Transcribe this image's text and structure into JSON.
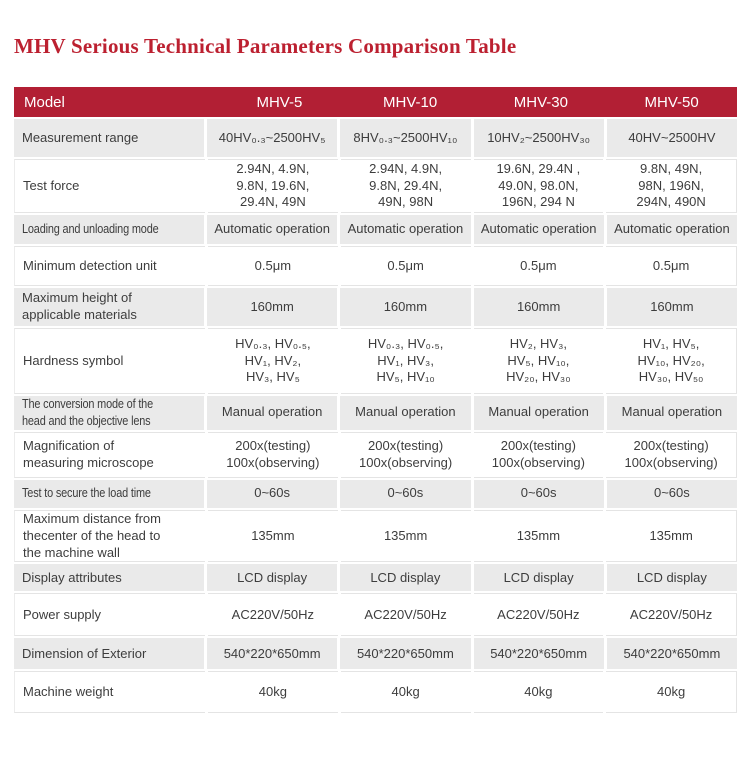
{
  "page": {
    "title": "MHV Serious Technical Parameters Comparison Table"
  },
  "colors": {
    "title_text": "#bc2030",
    "header_bg": "#b21f34",
    "header_text": "#ffffff",
    "row_gray": "#eaeaea",
    "row_white": "#ffffff",
    "body_text": "#3d3d3d"
  },
  "table": {
    "header": {
      "label": "Model",
      "columns": [
        "MHV-5",
        "MHV-10",
        "MHV-30",
        "MHV-50"
      ]
    },
    "rows": [
      {
        "label": "Measurement range",
        "values": [
          "40HV₀.₃~2500HV₅",
          "8HV₀.₃~2500HV₁₀",
          "10HV₂~2500HV₃₀",
          "40HV~2500HV"
        ]
      },
      {
        "label": "Test force",
        "values": [
          [
            "2.94N, 4.9N,",
            "9.8N, 19.6N,",
            "29.4N, 49N"
          ],
          [
            "2.94N, 4.9N,",
            "9.8N, 29.4N,",
            "49N, 98N"
          ],
          [
            "19.6N, 29.4N ,",
            "49.0N, 98.0N,",
            "196N, 294 N"
          ],
          [
            "9.8N, 49N,",
            "98N, 196N,",
            "294N, 490N"
          ]
        ]
      },
      {
        "label": "Loading and unloading mode",
        "condensed": true,
        "values": [
          "Automatic operation",
          "Automatic operation",
          "Automatic operation",
          "Automatic operation"
        ]
      },
      {
        "label": "Minimum detection unit",
        "values": [
          "0.5μm",
          "0.5μm",
          "0.5μm",
          "0.5μm"
        ]
      },
      {
        "label": "Maximum height of\napplicable materials",
        "values": [
          "160mm",
          "160mm",
          "160mm",
          "160mm"
        ]
      },
      {
        "label": "Hardness symbol",
        "values": [
          [
            "HV₀.₃, HV₀.₅,",
            "HV₁, HV₂,",
            "HV₃, HV₅"
          ],
          [
            "HV₀.₃, HV₀.₅,",
            "HV₁, HV₃,",
            "HV₅, HV₁₀"
          ],
          [
            "HV₂, HV₃,",
            "HV₅, HV₁₀,",
            "HV₂₀, HV₃₀"
          ],
          [
            "HV₁, HV₅,",
            "HV₁₀, HV₂₀,",
            "HV₃₀, HV₅₀"
          ]
        ]
      },
      {
        "label": "The conversion mode of the\nhead and the objective lens",
        "condensed": true,
        "values": [
          "Manual operation",
          "Manual operation",
          "Manual operation",
          "Manual operation"
        ]
      },
      {
        "label": "Magnification of\nmeasuring microscope",
        "values": [
          [
            "200x(testing)",
            "100x(observing)"
          ],
          [
            "200x(testing)",
            "100x(observing)"
          ],
          [
            "200x(testing)",
            "100x(observing)"
          ],
          [
            "200x(testing)",
            "100x(observing)"
          ]
        ]
      },
      {
        "label": "Test to secure the load time",
        "condensed": true,
        "values": [
          "0~60s",
          "0~60s",
          "0~60s",
          "0~60s"
        ]
      },
      {
        "label": "Maximum distance from\nthecenter of the head to\nthe machine wall",
        "values": [
          "135mm",
          "135mm",
          "135mm",
          "135mm"
        ]
      },
      {
        "label": "Display attributes",
        "values": [
          "LCD display",
          "LCD display",
          "LCD display",
          "LCD display"
        ]
      },
      {
        "label": "Power supply",
        "values": [
          "AC220V/50Hz",
          "AC220V/50Hz",
          "AC220V/50Hz",
          "AC220V/50Hz"
        ]
      },
      {
        "label": "Dimension of Exterior",
        "values": [
          "540*220*650mm",
          "540*220*650mm",
          "540*220*650mm",
          "540*220*650mm"
        ]
      },
      {
        "label": "Machine weight",
        "values": [
          "40kg",
          "40kg",
          "40kg",
          "40kg"
        ]
      }
    ]
  }
}
